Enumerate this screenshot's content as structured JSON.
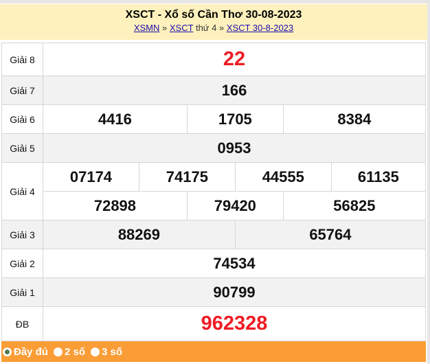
{
  "header": {
    "title": "XSCT - Xổ số Cần Thơ 30-08-2023",
    "breadcrumb": [
      {
        "label": "XSMN",
        "link": true
      },
      {
        "label": "»",
        "link": false
      },
      {
        "label": "XSCT",
        "link": true
      },
      {
        "label": "thứ 4 »",
        "link": false
      },
      {
        "label": "XSCT 30-8-2023",
        "link": true
      }
    ]
  },
  "prizes": [
    {
      "label": "Giải 8",
      "numbers": [
        "22"
      ]
    },
    {
      "label": "Giải 7",
      "numbers": [
        "166"
      ]
    },
    {
      "label": "Giải 6",
      "numbers": [
        "4416",
        "1705",
        "8384"
      ]
    },
    {
      "label": "Giải 5",
      "numbers": [
        "0953"
      ]
    },
    {
      "label": "Giải 4",
      "numbers": [
        "07174",
        "74175",
        "44555",
        "61135",
        "72898",
        "79420",
        "56825"
      ]
    },
    {
      "label": "Giải 3",
      "numbers": [
        "88269",
        "65764"
      ]
    },
    {
      "label": "Giải 2",
      "numbers": [
        "74534"
      ]
    },
    {
      "label": "Giải 1",
      "numbers": [
        "90799"
      ]
    },
    {
      "label": "ĐB",
      "numbers": [
        "962328"
      ]
    }
  ],
  "footer": {
    "options": [
      {
        "label": "Đầy đủ",
        "selected": true
      },
      {
        "label": "2 số",
        "selected": false
      },
      {
        "label": "3 số",
        "selected": false
      }
    ]
  },
  "colors": {
    "header_bg": "#fff1bd",
    "highlight": "#ee1c25",
    "footer_bg": "#fa9d36",
    "alt_row": "#f2f2f2"
  }
}
